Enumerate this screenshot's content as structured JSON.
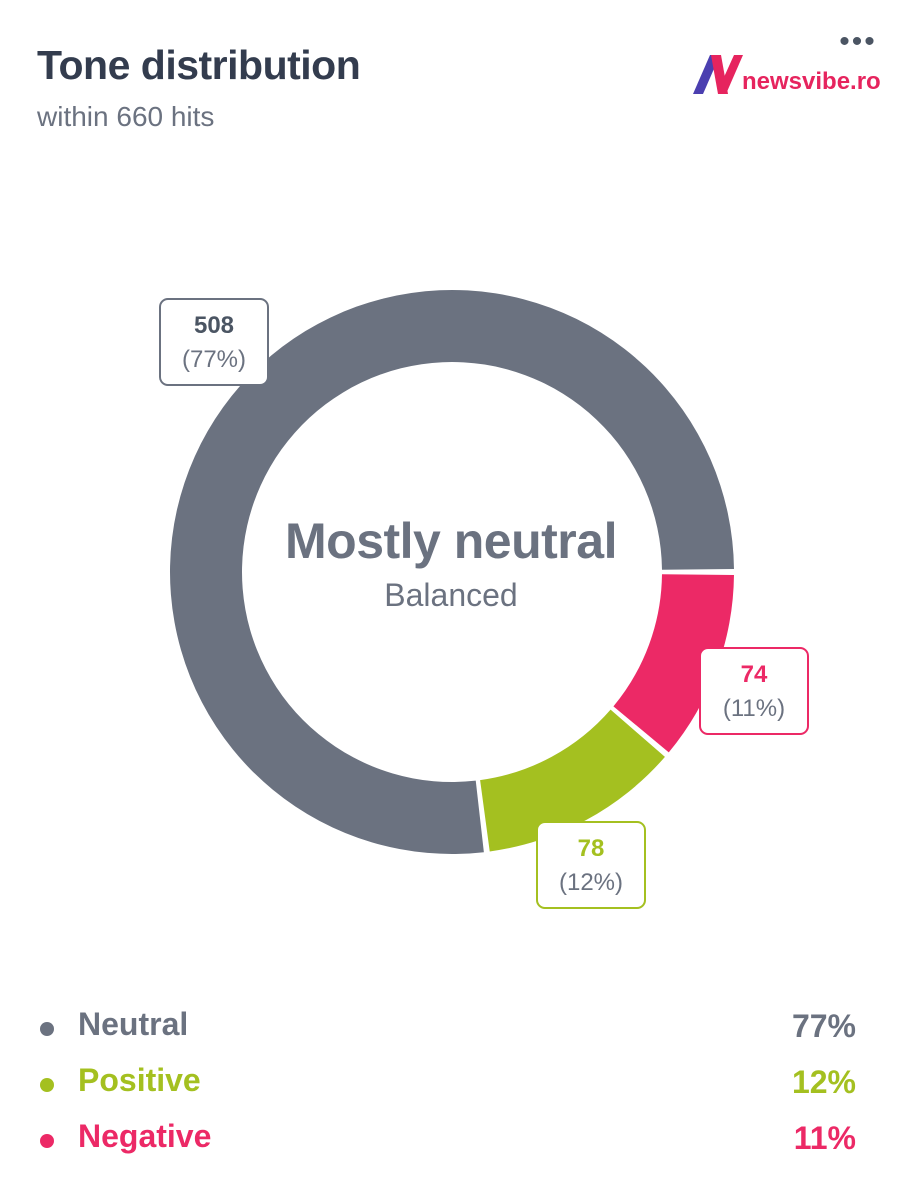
{
  "header": {
    "title": "Tone distribution",
    "subtitle": "within 660 hits",
    "menu_icon": "more-horizontal-icon"
  },
  "logo": {
    "mark_icon": "newsvibe-logo-icon",
    "text": "newsvibe.ro",
    "colors": {
      "primary": "#e6245e",
      "secondary": "#4b3fb0"
    }
  },
  "center": {
    "title": "Mostly neutral",
    "subtitle": "Balanced"
  },
  "chart_data": {
    "type": "pie",
    "variant": "donut",
    "total": 660,
    "slices": [
      {
        "name": "Neutral",
        "value": 508,
        "percent": "77%",
        "color": "#6b7280"
      },
      {
        "name": "Positive",
        "value": 78,
        "percent": "12%",
        "color": "#a4c020"
      },
      {
        "name": "Negative",
        "value": 74,
        "percent": "11%",
        "color": "#ec2966"
      }
    ],
    "data_labels": [
      {
        "value": "508",
        "percent": "(77%)"
      },
      {
        "value": "78",
        "percent": "(12%)"
      },
      {
        "value": "74",
        "percent": "(11%)"
      }
    ]
  },
  "legend": [
    {
      "label": "Neutral",
      "value": "77%",
      "color": "#6b7280"
    },
    {
      "label": "Positive",
      "value": "12%",
      "color": "#a4c020"
    },
    {
      "label": "Negative",
      "value": "11%",
      "color": "#ec2966"
    }
  ]
}
